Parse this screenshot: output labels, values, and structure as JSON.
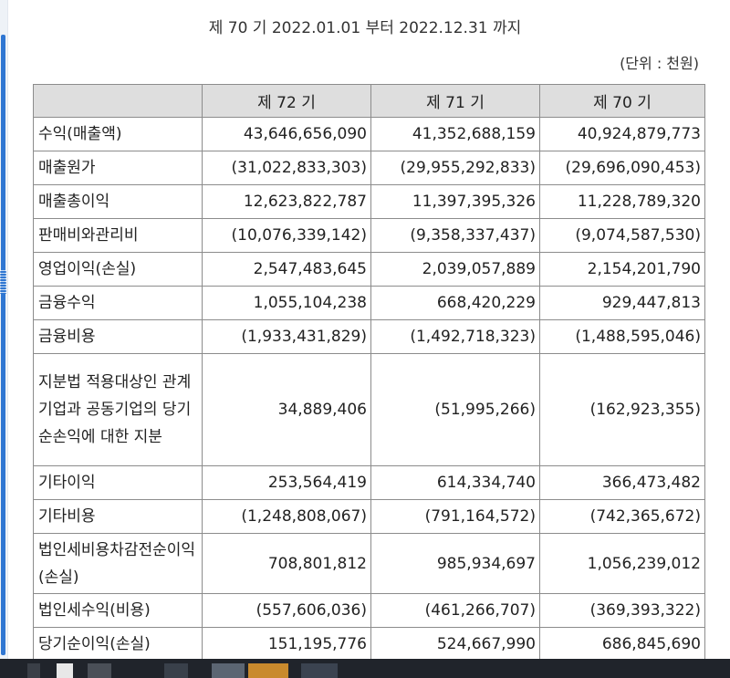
{
  "header": {
    "period": "제 70 기 2022.01.01 부터 2022.12.31 까지",
    "unit": "(단위 : 천원)"
  },
  "table": {
    "columns": [
      "",
      "제 72 기",
      "제 71 기",
      "제 70 기"
    ],
    "rows": [
      {
        "label": "수익(매출액)",
        "values": [
          "43,646,656,090",
          "41,352,688,159",
          "40,924,879,773"
        ]
      },
      {
        "label": "매출원가",
        "values": [
          "(31,022,833,303)",
          "(29,955,292,833)",
          "(29,696,090,453)"
        ]
      },
      {
        "label": "매출총이익",
        "values": [
          "12,623,822,787",
          "11,397,395,326",
          "11,228,789,320"
        ]
      },
      {
        "label": "판매비와관리비",
        "values": [
          "(10,076,339,142)",
          "(9,358,337,437)",
          "(9,074,587,530)"
        ]
      },
      {
        "label": "영업이익(손실)",
        "values": [
          "2,547,483,645",
          "2,039,057,889",
          "2,154,201,790"
        ]
      },
      {
        "label": "금융수익",
        "values": [
          "1,055,104,238",
          "668,420,229",
          "929,447,813"
        ]
      },
      {
        "label": "금융비용",
        "values": [
          "(1,933,431,829)",
          "(1,492,718,323)",
          "(1,488,595,046)"
        ]
      },
      {
        "label": "지분법 적용대상인 관계기업과 공동기업의 당기순손익에 대한 지분",
        "values": [
          "34,889,406",
          "(51,995,266)",
          "(162,923,355)"
        ]
      },
      {
        "label": "기타이익",
        "values": [
          "253,564,419",
          "614,334,740",
          "366,473,482"
        ]
      },
      {
        "label": "기타비용",
        "values": [
          "(1,248,808,067)",
          "(791,164,572)",
          "(742,365,672)"
        ]
      },
      {
        "label": "법인세비용차감전순이익(손실)",
        "values": [
          "708,801,812",
          "985,934,697",
          "1,056,239,012"
        ]
      },
      {
        "label": "법인세수익(비용)",
        "values": [
          "(557,606,036)",
          "(461,266,707)",
          "(369,393,322)"
        ]
      },
      {
        "label": "당기순이익(손실)",
        "values": [
          "151,195,776",
          "524,667,990",
          "686,845,690"
        ]
      }
    ]
  }
}
